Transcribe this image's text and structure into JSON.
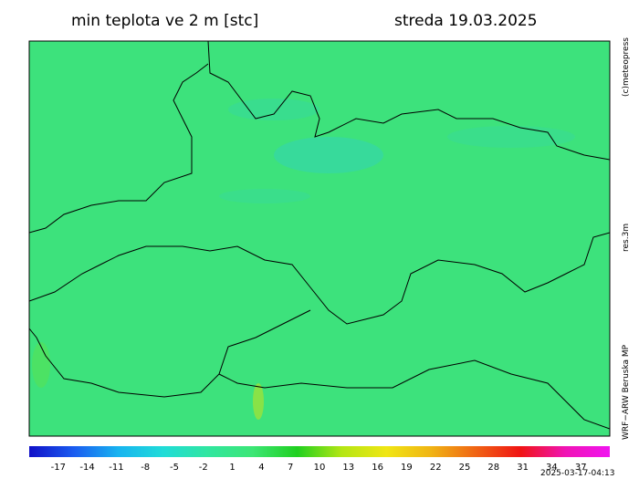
{
  "header": {
    "title": "min teplota ve 2 m [stc]",
    "date": "streda 19.03.2025"
  },
  "side_labels": {
    "copyright": "(c)meteopress",
    "resolution": "res.3m",
    "model": "WRF−ARW Beruska MP"
  },
  "colorbar": {
    "range": [
      -20,
      40
    ],
    "colors": [
      "#1010c8",
      "#1a5cf0",
      "#18b4f0",
      "#20dcd8",
      "#30e6a0",
      "#3ce676",
      "#20d020",
      "#b4e614",
      "#f0e614",
      "#f0b414",
      "#f06414",
      "#f01414",
      "#f014b4",
      "#f014f0"
    ],
    "ticks": [
      -17,
      -14,
      -11,
      -8,
      -5,
      -2,
      1,
      4,
      7,
      10,
      13,
      16,
      19,
      22,
      25,
      28,
      31,
      34,
      37
    ]
  },
  "timestamp": "2025-03-17-04:13"
}
